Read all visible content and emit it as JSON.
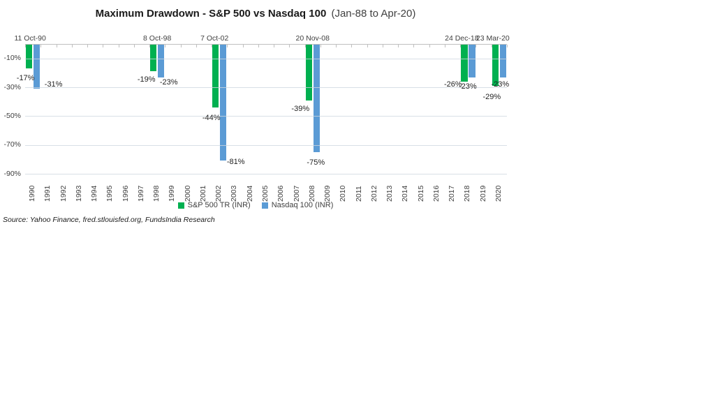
{
  "page": {
    "background": "#ffffff"
  },
  "chart_data": {
    "type": "bar",
    "title": {
      "bold": "Maximum Drawdown - S&P 500 vs Nasdaq 100",
      "normal": "(Jan-88 to Apr-20)"
    },
    "source": "Source: Yahoo Finance, fred.stlouisfed.org, FundsIndia Research",
    "legend": {
      "position": "bottom-center",
      "entries": [
        {
          "label": "S&P 500 TR (INR)",
          "color": "#00B050"
        },
        {
          "label": "Nasdaq 100 (INR)",
          "color": "#5B9BD5"
        }
      ]
    },
    "series": [
      {
        "name": "S&P 500 TR (INR)",
        "color": "#00B050"
      },
      {
        "name": "Nasdaq 100 (INR)",
        "color": "#5B9BD5"
      }
    ],
    "axes": {
      "y": {
        "unit": "%",
        "min": -90,
        "max": 0,
        "tick_values": [
          -10,
          -30,
          -50,
          -70,
          -90
        ],
        "tick_labels": [
          "-10%",
          "-30%",
          "-50%",
          "-70%",
          "-90%"
        ],
        "gridlines": true
      },
      "x": {
        "categories": [
          "1990",
          "1991",
          "1992",
          "1993",
          "1994",
          "1995",
          "1996",
          "1997",
          "1998",
          "1999",
          "2000",
          "2001",
          "2002",
          "2003",
          "2004",
          "2005",
          "2006",
          "2007",
          "2008",
          "2009",
          "2010",
          "2011",
          "2012",
          "2013",
          "2014",
          "2015",
          "2016",
          "2017",
          "2018",
          "2019",
          "2020"
        ]
      }
    },
    "drawdowns": [
      {
        "year": "1990",
        "date_label": "11 Oct-90",
        "sp500": -17,
        "nasdaq": -31,
        "sp500_label": "-17%",
        "nasdaq_label": "-31%",
        "offsets": {
          "sp500": [
            -5,
            5
          ],
          "nasdaq": [
            24,
            -15
          ],
          "date_dx": -4
        }
      },
      {
        "year": "1998",
        "date_label": "8 Oct-98",
        "sp500": -19,
        "nasdaq": -23,
        "sp500_label": "-19%",
        "nasdaq_label": "-23%",
        "offsets": {
          "sp500": [
            -10,
            3
          ],
          "nasdaq": [
            11,
            -2
          ],
          "date_dx": 0
        }
      },
      {
        "year": "2002",
        "date_label": "7 Oct-02",
        "sp500": -44,
        "nasdaq": -81,
        "sp500_label": "-44%",
        "nasdaq_label": "-81%",
        "offsets": {
          "sp500": [
            -6,
            6
          ],
          "nasdaq": [
            18,
            -7
          ],
          "date_dx": -7
        }
      },
      {
        "year": "2008",
        "date_label": "20 Nov-08",
        "sp500": -39,
        "nasdaq": -75,
        "sp500_label": "-39%",
        "nasdaq_label": "-75%",
        "offsets": {
          "sp500": [
            -12,
            3
          ],
          "nasdaq": [
            -1,
            6
          ],
          "date_dx": 0
        }
      },
      {
        "year": "2018",
        "date_label": "24 Dec-18",
        "sp500": -26,
        "nasdaq": -23,
        "sp500_label": "-26%",
        "nasdaq_label": "-23%",
        "offsets": {
          "sp500": [
            -16,
            -5
          ],
          "nasdaq": [
            -6,
            4
          ],
          "date_dx": -9
        }
      },
      {
        "year": "2020",
        "date_label": "23 Mar-20",
        "sp500": -29,
        "nasdaq": -23,
        "sp500_label": "-29%",
        "nasdaq_label": "-23%",
        "offsets": {
          "sp500": [
            -5,
            7
          ],
          "nasdaq": [
            -4,
            1
          ],
          "date_dx": -9
        }
      }
    ]
  },
  "style_colors": {
    "axis_line": "#bfbfbf",
    "gridline": "#d7dee6",
    "label_text": "#404040",
    "value_text": "#1f1f1f"
  }
}
